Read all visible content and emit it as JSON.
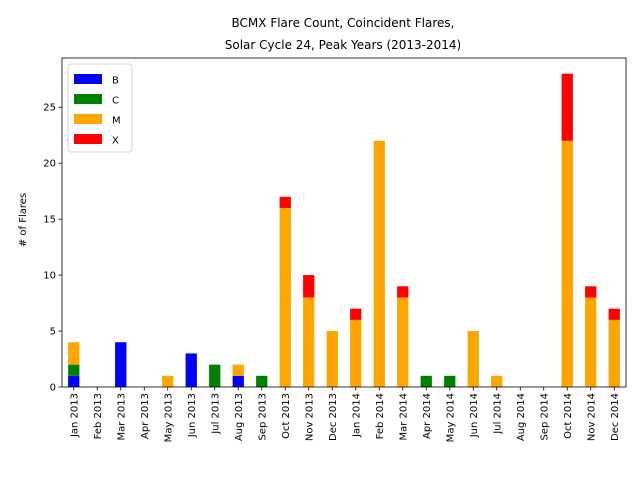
{
  "chart_data": {
    "type": "bar",
    "stacked": true,
    "title": [
      "BCMX Flare Count, Coincident Flares,",
      "Solar Cycle 24, Peak Years (2013-2014)"
    ],
    "xlabel": "",
    "ylabel": "# of Flares",
    "ylim": [
      0,
      29.4
    ],
    "yticks": [
      0,
      5,
      10,
      15,
      20,
      25
    ],
    "legend_position": "upper-left",
    "grid": false,
    "categories": [
      "Jan 2013",
      "Feb 2013",
      "Mar 2013",
      "Apr 2013",
      "May 2013",
      "Jun 2013",
      "Jul 2013",
      "Aug 2013",
      "Sep 2013",
      "Oct 2013",
      "Nov 2013",
      "Dec 2013",
      "Jan 2014",
      "Feb 2014",
      "Mar 2014",
      "Apr 2014",
      "May 2014",
      "Jun 2014",
      "Jul 2014",
      "Aug 2014",
      "Sep 2014",
      "Oct 2014",
      "Nov 2014",
      "Dec 2014"
    ],
    "series": [
      {
        "name": "B",
        "color": "#0000ff",
        "values": [
          1,
          0,
          4,
          0,
          0,
          3,
          0,
          1,
          0,
          0,
          0,
          0,
          0,
          0,
          0,
          0,
          0,
          0,
          0,
          0,
          0,
          0,
          0,
          0
        ]
      },
      {
        "name": "C",
        "color": "#008000",
        "values": [
          1,
          0,
          0,
          0,
          0,
          0,
          2,
          0,
          1,
          0,
          0,
          0,
          0,
          0,
          0,
          1,
          1,
          0,
          0,
          0,
          0,
          0,
          0,
          0
        ]
      },
      {
        "name": "M",
        "color": "#ffa500",
        "values": [
          2,
          0,
          0,
          0,
          1,
          0,
          0,
          1,
          0,
          16,
          8,
          5,
          6,
          22,
          8,
          0,
          0,
          5,
          1,
          0,
          0,
          22,
          8,
          6
        ]
      },
      {
        "name": "X",
        "color": "#ff0000",
        "values": [
          0,
          0,
          0,
          0,
          0,
          0,
          0,
          0,
          0,
          1,
          2,
          0,
          1,
          0,
          1,
          0,
          0,
          0,
          0,
          0,
          0,
          6,
          1,
          1
        ]
      }
    ]
  }
}
